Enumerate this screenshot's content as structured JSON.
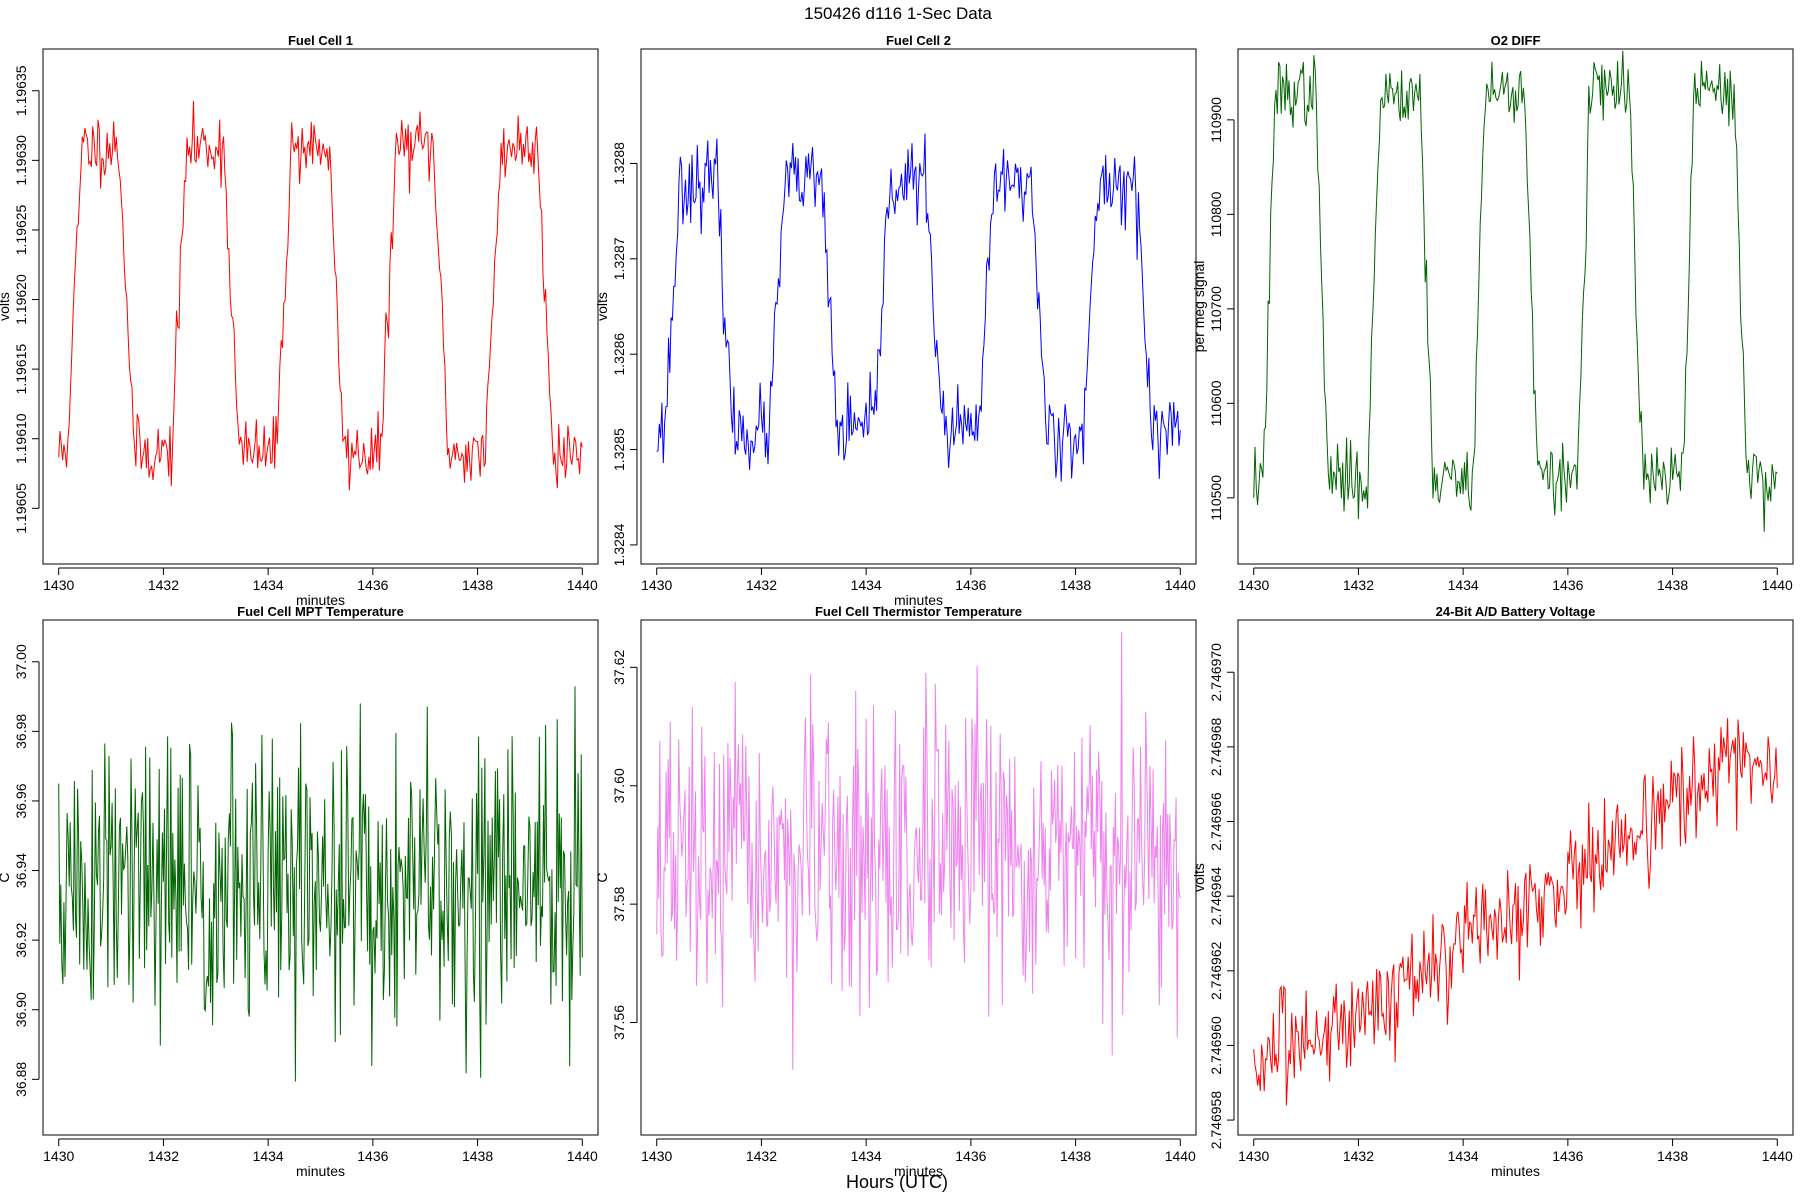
{
  "figure": {
    "title": "150426   d116   1-Sec Data",
    "xlabel": "Hours (UTC)"
  },
  "chart_data": [
    {
      "type": "line",
      "title": "Fuel Cell 1",
      "xlabel": "minutes",
      "ylabel": "volts",
      "color": "#ff0000",
      "xlim": [
        1429.7,
        1440.3
      ],
      "ylim": [
        1.19601,
        1.19638
      ],
      "xticks": [
        1430,
        1432,
        1434,
        1436,
        1438,
        1440
      ],
      "xtick_labels": [
        "1430",
        "1432",
        "1434",
        "1436",
        "1438",
        "1440"
      ],
      "yticks": [
        1.19605,
        1.1961,
        1.19615,
        1.1962,
        1.19625,
        1.1963,
        1.19635
      ],
      "ytick_labels": [
        "1.19605",
        "1.19610",
        "1.19615",
        "1.19620",
        "1.19625",
        "1.19630",
        "1.19635"
      ],
      "pattern": "square",
      "wave": {
        "phase_start": 1430.3,
        "period": 2.0,
        "high_half": 1.0,
        "high": 1.19631,
        "low": 1.19609,
        "noise": 1.2e-05,
        "ramp": 0.15,
        "seed": 11,
        "x_start": 1430.0,
        "x_end": 1440.0,
        "step": 0.025
      }
    },
    {
      "type": "line",
      "title": "Fuel Cell 2",
      "xlabel": "minutes",
      "ylabel": "volts",
      "color": "#0000ff",
      "xlim": [
        1429.7,
        1440.3
      ],
      "ylim": [
        1.32838,
        1.32892
      ],
      "xticks": [
        1430,
        1432,
        1434,
        1436,
        1438,
        1440
      ],
      "xtick_labels": [
        "1430",
        "1432",
        "1434",
        "1436",
        "1438",
        "1440"
      ],
      "yticks": [
        1.3284,
        1.3285,
        1.3286,
        1.3287,
        1.3288
      ],
      "ytick_labels": [
        "1.3284",
        "1.3285",
        "1.3286",
        "1.3287",
        "1.3288"
      ],
      "pattern": "square",
      "wave": {
        "phase_start": 1431.3,
        "period": 2.0,
        "high_half": 1.0,
        "high": 1.32878,
        "low": 1.32852,
        "noise": 2e-05,
        "ramp": 0.15,
        "seed": 23,
        "x_start": 1430.0,
        "x_end": 1440.0,
        "step": 0.025,
        "start_high": true
      }
    },
    {
      "type": "line",
      "title": "O2 DIFF",
      "xlabel": "",
      "ylabel": "per meg signal",
      "color": "#006400",
      "xlim": [
        1429.7,
        1440.3
      ],
      "ylim": [
        110430,
        110975
      ],
      "xticks": [
        1430,
        1432,
        1434,
        1436,
        1438,
        1440
      ],
      "xtick_labels": [
        "1430",
        "1432",
        "1434",
        "1436",
        "1438",
        "1440"
      ],
      "yticks": [
        110500,
        110600,
        110700,
        110800,
        110900
      ],
      "ytick_labels": [
        "110500",
        "110600",
        "110700",
        "110800",
        "110900"
      ],
      "pattern": "square",
      "wave": {
        "phase_start": 1431.3,
        "period": 2.0,
        "high_half": 1.0,
        "high": 110930,
        "low": 110520,
        "noise": 18,
        "ramp": 0.12,
        "seed": 37,
        "x_start": 1430.0,
        "x_end": 1440.0,
        "step": 0.025,
        "start_high": true
      }
    },
    {
      "type": "line",
      "title": "Fuel Cell MPT Temperature",
      "xlabel": "minutes",
      "ylabel": "C",
      "color": "#006400",
      "xlim": [
        1429.7,
        1440.3
      ],
      "ylim": [
        36.864,
        37.012
      ],
      "xticks": [
        1430,
        1432,
        1434,
        1436,
        1438,
        1440
      ],
      "xtick_labels": [
        "1430",
        "1432",
        "1434",
        "1436",
        "1438",
        "1440"
      ],
      "yticks": [
        36.88,
        36.9,
        36.92,
        36.94,
        36.96,
        36.98,
        37.0
      ],
      "ytick_labels": [
        "36.88",
        "36.90",
        "36.92",
        "36.94",
        "36.96",
        "36.98",
        "37.00"
      ],
      "pattern": "noise",
      "wave": {
        "mean": 36.935,
        "noise": 0.022,
        "min": 36.868,
        "max": 37.008,
        "seed": 51,
        "x_start": 1430.0,
        "x_end": 1440.0,
        "step": 0.02
      }
    },
    {
      "type": "line",
      "title": "Fuel Cell Thermistor Temperature",
      "xlabel": "minutes",
      "ylabel": "C",
      "color": "#ee82ee",
      "xlim": [
        1429.7,
        1440.3
      ],
      "ylim": [
        37.541,
        37.628
      ],
      "xticks": [
        1430,
        1432,
        1434,
        1436,
        1438,
        1440
      ],
      "xtick_labels": [
        "1430",
        "1432",
        "1434",
        "1436",
        "1438",
        "1440"
      ],
      "yticks": [
        37.56,
        37.58,
        37.6,
        37.62
      ],
      "ytick_labels": [
        "37.56",
        "37.58",
        "37.60",
        "37.62"
      ],
      "pattern": "noise",
      "wave": {
        "mean": 37.587,
        "noise": 0.012,
        "min": 37.544,
        "max": 37.626,
        "seed": 67,
        "x_start": 1430.0,
        "x_end": 1440.0,
        "step": 0.02
      }
    },
    {
      "type": "line",
      "title": "24-Bit A/D Battery Voltage",
      "xlabel": "minutes",
      "ylabel": "volts",
      "color": "#ff0000",
      "xlim": [
        1429.7,
        1440.3
      ],
      "ylim": [
        2.7469576,
        2.7469714
      ],
      "xticks": [
        1430,
        1432,
        1434,
        1436,
        1438,
        1440
      ],
      "xtick_labels": [
        "1430",
        "1432",
        "1434",
        "1436",
        "1438",
        "1440"
      ],
      "yticks": [
        2.746958,
        2.74696,
        2.746962,
        2.746964,
        2.746966,
        2.746968,
        2.74697
      ],
      "ytick_labels": [
        "2.746958",
        "2.746960",
        "2.746962",
        "2.746964",
        "2.746966",
        "2.746968",
        "2.746970"
      ],
      "pattern": "trend",
      "wave": {
        "start": 2.7469595,
        "end": 2.7469685,
        "noise": 7e-07,
        "min": 2.7469582,
        "max": 2.746971,
        "seed": 83,
        "x_start": 1430.0,
        "x_end": 1440.0,
        "step": 0.025,
        "tail": 2.7469665
      }
    }
  ]
}
